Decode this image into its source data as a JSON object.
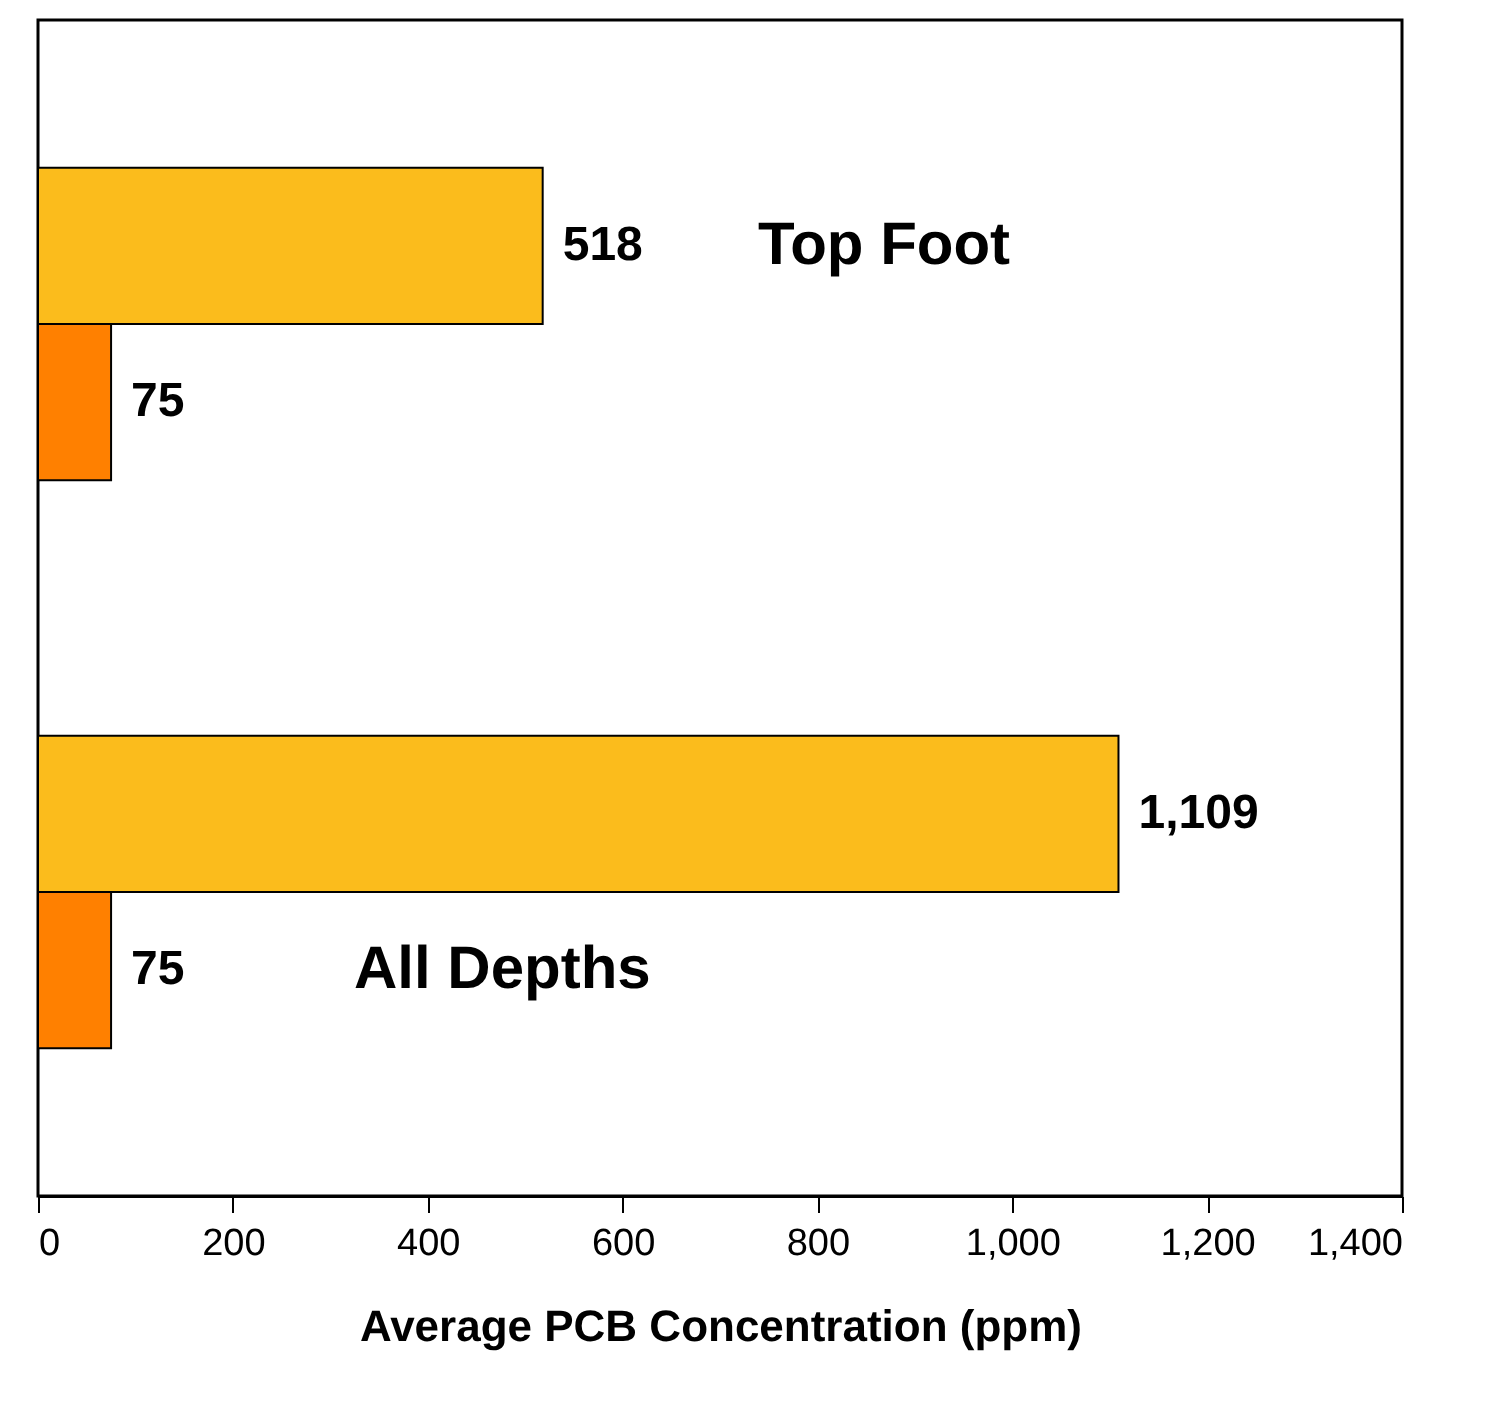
{
  "chart_data": {
    "type": "bar",
    "orientation": "horizontal",
    "xlabel": "Average PCB Concentration (ppm)",
    "categories": [
      "Top Foot",
      "All Depths"
    ],
    "series": [
      {
        "color": "#fbbc1c",
        "values": [
          518,
          1109
        ],
        "value_labels": [
          "518",
          "1,109"
        ]
      },
      {
        "color": "#ff8000",
        "values": [
          75,
          75
        ],
        "value_labels": [
          "75",
          "75"
        ]
      }
    ],
    "xlim": [
      0,
      1400
    ],
    "xticks": [
      0,
      200,
      400,
      600,
      800,
      {
        "value": 1000,
        "label": "1,000"
      },
      {
        "value": 1200,
        "label": "1,200"
      },
      {
        "value": 1400,
        "label": "1,400"
      }
    ],
    "tick_labels": "x",
    "grid": false,
    "legend": false
  }
}
